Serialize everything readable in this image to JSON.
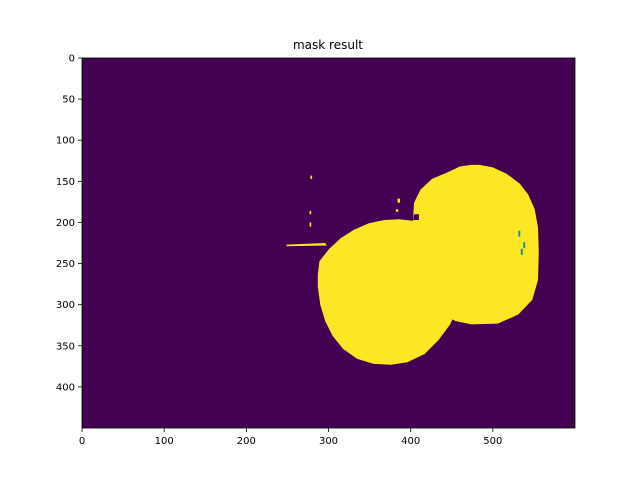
{
  "chart_data": {
    "type": "heatmap",
    "title": "mask result",
    "xlabel": "",
    "ylabel": "",
    "image_width": 600,
    "image_height": 450,
    "xlim": [
      0,
      600
    ],
    "ylim": [
      450,
      0
    ],
    "x_ticks": [
      0,
      100,
      200,
      300,
      400,
      500
    ],
    "y_ticks": [
      0,
      50,
      100,
      150,
      200,
      250,
      300,
      350,
      400
    ],
    "grid": false,
    "legend": "none",
    "colormap": "viridis",
    "colors": {
      "background_value_0": "#440154",
      "mask_value_1": "#fde725",
      "edge_value_mid": "#21918c"
    },
    "mask_regions": [
      {
        "name": "upper-right disc",
        "polygon": [
          [
            403,
            196
          ],
          [
            404,
            176
          ],
          [
            412,
            160
          ],
          [
            426,
            147
          ],
          [
            445,
            139
          ],
          [
            460,
            132
          ],
          [
            473,
            130
          ],
          [
            484,
            130
          ],
          [
            500,
            133
          ],
          [
            517,
            141
          ],
          [
            533,
            153
          ],
          [
            543,
            166
          ],
          [
            551,
            184
          ],
          [
            555,
            206
          ],
          [
            556,
            236
          ],
          [
            555,
            270
          ],
          [
            548,
            294
          ],
          [
            531,
            312
          ],
          [
            506,
            323
          ],
          [
            474,
            324
          ],
          [
            455,
            320
          ],
          [
            432,
            309
          ],
          [
            414,
            291
          ],
          [
            402,
            270
          ],
          [
            397,
            245
          ],
          [
            397,
            220
          ]
        ]
      },
      {
        "name": "lower-left disc",
        "polygon": [
          [
            289,
            247
          ],
          [
            301,
            232
          ],
          [
            315,
            219
          ],
          [
            331,
            209
          ],
          [
            349,
            201
          ],
          [
            368,
            197
          ],
          [
            386,
            196
          ],
          [
            402,
            198
          ],
          [
            420,
            206
          ],
          [
            436,
            217
          ],
          [
            448,
            231
          ],
          [
            456,
            248
          ],
          [
            460,
            266
          ],
          [
            461,
            286
          ],
          [
            457,
            305
          ],
          [
            448,
            324
          ],
          [
            434,
            343
          ],
          [
            417,
            360
          ],
          [
            396,
            370
          ],
          [
            376,
            373
          ],
          [
            355,
            372
          ],
          [
            335,
            366
          ],
          [
            318,
            354
          ],
          [
            305,
            338
          ],
          [
            296,
            320
          ],
          [
            290,
            300
          ],
          [
            287,
            278
          ],
          [
            287,
            263
          ]
        ]
      },
      {
        "name": "horizontal streak",
        "polygon": [
          [
            249,
            227
          ],
          [
            296,
            225
          ],
          [
            298,
            228
          ],
          [
            249,
            229
          ]
        ]
      },
      {
        "name": "speck",
        "polygon": [
          [
            278,
            143
          ],
          [
            280,
            143
          ],
          [
            280,
            147
          ],
          [
            278,
            147
          ]
        ]
      },
      {
        "name": "speck",
        "polygon": [
          [
            277,
            186
          ],
          [
            279,
            186
          ],
          [
            279,
            190
          ],
          [
            277,
            190
          ]
        ]
      },
      {
        "name": "speck",
        "polygon": [
          [
            277,
            200
          ],
          [
            279,
            200
          ],
          [
            279,
            205
          ],
          [
            277,
            205
          ]
        ]
      },
      {
        "name": "speck",
        "polygon": [
          [
            384,
            171
          ],
          [
            387,
            171
          ],
          [
            387,
            176
          ],
          [
            384,
            176
          ]
        ]
      },
      {
        "name": "speck",
        "polygon": [
          [
            382,
            184
          ],
          [
            385,
            184
          ],
          [
            385,
            187
          ],
          [
            382,
            187
          ]
        ]
      }
    ],
    "hole_regions": [
      {
        "name": "gap between discs",
        "polygon": [
          [
            403,
            197
          ],
          [
            410,
            197
          ],
          [
            410,
            190
          ],
          [
            404,
            190
          ]
        ]
      }
    ]
  }
}
